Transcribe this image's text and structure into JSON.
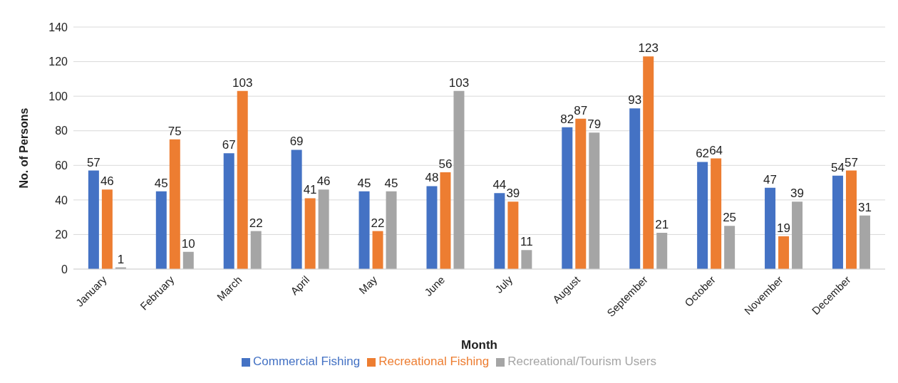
{
  "chart_data": {
    "type": "bar",
    "xlabel": "Month",
    "ylabel": "No. of Persons",
    "categories": [
      "January",
      "February",
      "March",
      "April",
      "May",
      "June",
      "July",
      "August",
      "September",
      "October",
      "November",
      "December"
    ],
    "series": [
      {
        "name": "Commercial Fishing",
        "color": "#4472c4",
        "values": [
          57,
          45,
          67,
          69,
          45,
          48,
          44,
          82,
          93,
          62,
          47,
          54
        ]
      },
      {
        "name": "Recreational Fishing",
        "color": "#ed7d31",
        "values": [
          46,
          75,
          103,
          41,
          22,
          56,
          39,
          87,
          123,
          64,
          19,
          57
        ]
      },
      {
        "name": "Recreational/Tourism Users",
        "color": "#a5a5a5",
        "values": [
          1,
          10,
          22,
          46,
          45,
          103,
          11,
          79,
          21,
          25,
          39,
          31
        ]
      }
    ],
    "ylim": [
      0,
      140
    ],
    "yticks": [
      0,
      20,
      40,
      60,
      80,
      100,
      120,
      140
    ],
    "grid": "y",
    "legend": "bottom",
    "data_labels": true
  }
}
